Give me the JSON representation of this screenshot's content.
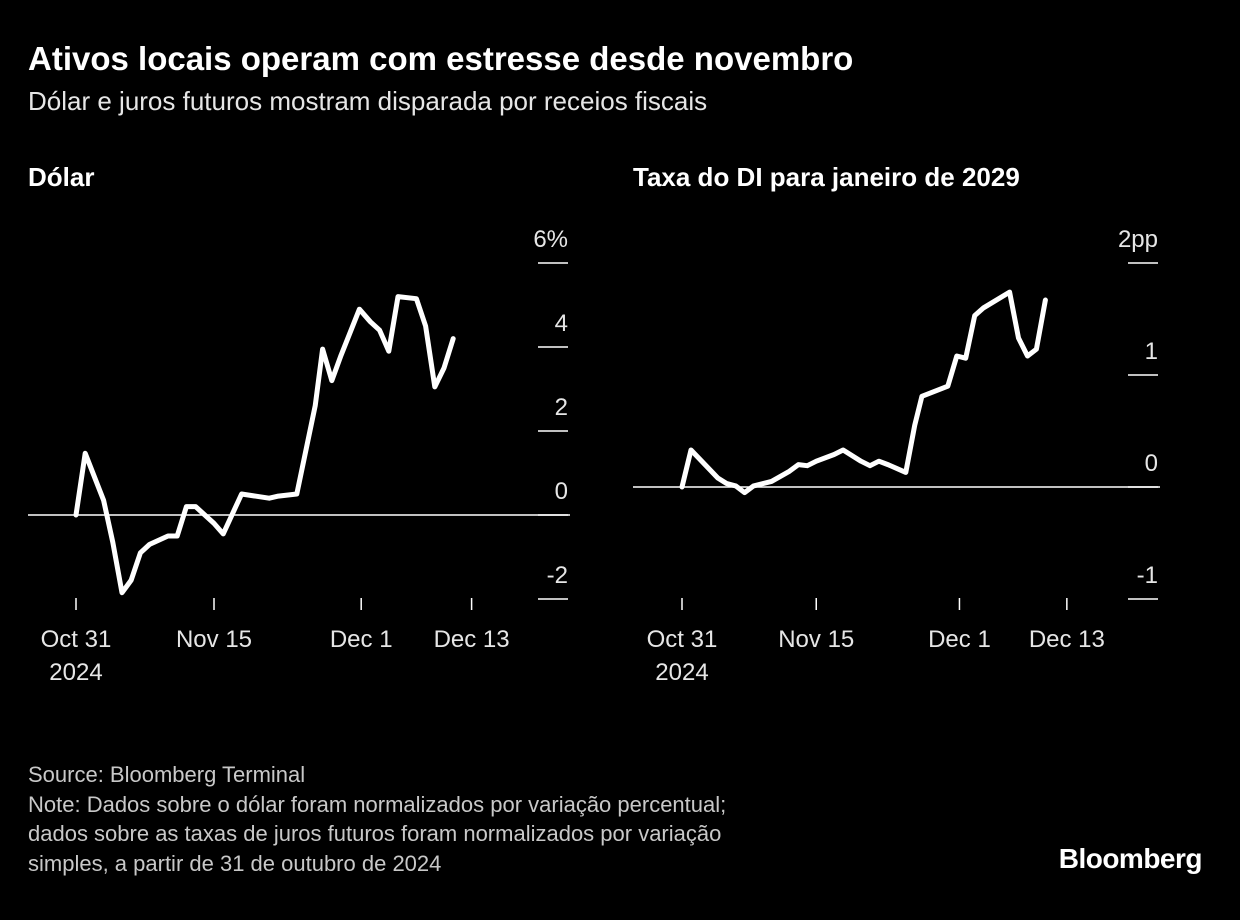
{
  "header": {
    "title": "Ativos locais operam com estresse desde novembro",
    "subtitle": "Dólar e juros futuros mostram disparada por receios fiscais"
  },
  "chart_data": [
    {
      "type": "line",
      "title": "Dólar",
      "unit_suffix": "%",
      "ylim": [
        -2,
        6
      ],
      "yticks": [
        -2,
        0,
        2,
        4,
        6
      ],
      "ytick_labels": [
        "-2",
        "0",
        "2",
        "4",
        "6%"
      ],
      "xlim": [
        0,
        46
      ],
      "xticks": [
        {
          "day": 0,
          "label": "Oct 31",
          "sublabel": "2024"
        },
        {
          "day": 15,
          "label": "Nov 15",
          "sublabel": ""
        },
        {
          "day": 31,
          "label": "Dec 1",
          "sublabel": ""
        },
        {
          "day": 43,
          "label": "Dec 13",
          "sublabel": ""
        }
      ],
      "series": [
        {
          "name": "Dólar",
          "x": [
            0,
            1,
            3,
            4,
            5,
            6,
            7,
            8,
            10,
            11,
            12,
            13,
            15,
            16,
            18,
            21,
            22,
            24,
            26,
            26.8,
            27.8,
            28.8,
            30.8,
            32,
            33,
            34,
            35,
            37,
            38,
            39,
            40,
            41
          ],
          "y": [
            0.0,
            1.47,
            0.35,
            -0.65,
            -1.85,
            -1.55,
            -0.9,
            -0.7,
            -0.5,
            -0.5,
            0.2,
            0.2,
            -0.2,
            -0.45,
            0.5,
            0.4,
            0.45,
            0.5,
            2.6,
            3.95,
            3.2,
            3.8,
            4.9,
            4.6,
            4.4,
            3.9,
            5.2,
            5.15,
            4.5,
            3.05,
            3.5,
            4.2
          ]
        }
      ]
    },
    {
      "type": "line",
      "title": "Taxa do DI para janeiro de 2029",
      "unit_suffix": "pp",
      "ylim": [
        -1,
        2
      ],
      "yticks": [
        -1,
        0,
        1,
        2
      ],
      "ytick_labels": [
        "-1",
        "0",
        "1",
        "2pp"
      ],
      "xlim": [
        0,
        46
      ],
      "xticks": [
        {
          "day": 0,
          "label": "Oct 31",
          "sublabel": "2024"
        },
        {
          "day": 15,
          "label": "Nov 15",
          "sublabel": ""
        },
        {
          "day": 31,
          "label": "Dec 1",
          "sublabel": ""
        },
        {
          "day": 43,
          "label": "Dec 13",
          "sublabel": ""
        }
      ],
      "series": [
        {
          "name": "Taxa do DI para janeiro de 2029",
          "x": [
            0,
            1,
            4,
            5,
            6,
            7,
            8,
            10,
            12,
            13,
            14,
            15,
            17,
            18,
            20,
            21,
            22,
            23,
            25,
            26,
            26.8,
            29.7,
            30.7,
            31.7,
            32.7,
            33.7,
            36.6,
            37.6,
            38.6,
            39.6,
            40.6
          ],
          "y": [
            0.0,
            0.33,
            0.08,
            0.03,
            0.01,
            -0.05,
            0.01,
            0.05,
            0.14,
            0.2,
            0.19,
            0.23,
            0.29,
            0.33,
            0.23,
            0.19,
            0.23,
            0.2,
            0.13,
            0.55,
            0.81,
            0.9,
            1.17,
            1.15,
            1.53,
            1.6,
            1.74,
            1.33,
            1.17,
            1.23,
            1.67
          ]
        }
      ]
    }
  ],
  "footer": {
    "source": "Source: Bloomberg Terminal",
    "note_line1": "Note: Dados sobre o dólar foram normalizados por variação percentual;",
    "note_line2": "dados sobre as taxas de juros futuros foram normalizados por variação",
    "note_line3": "simples, a partir de 31 de outubro de 2024"
  },
  "brand": "Bloomberg"
}
